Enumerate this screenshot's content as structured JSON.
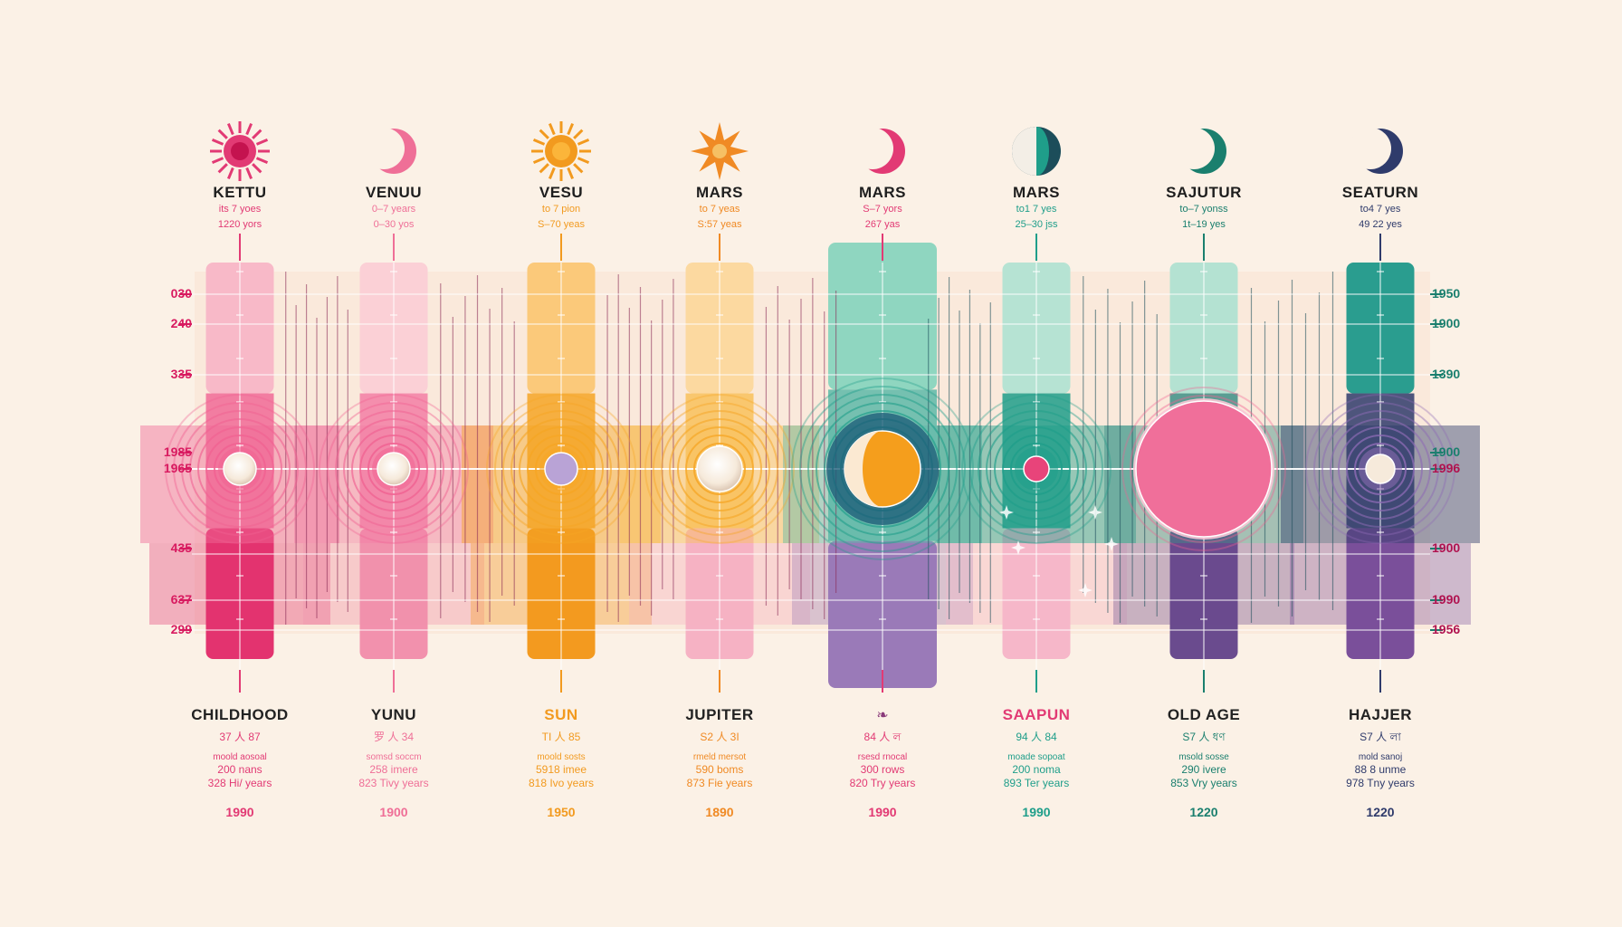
{
  "colors": {
    "background": "#fbf1e6",
    "pink": "#e8447a",
    "magenta": "#d81b60",
    "orange": "#f5a524",
    "teal": "#1f9e8a",
    "navy": "#2f3b6b",
    "purple": "#7a4f9a"
  },
  "columns": [
    {
      "top_label": "KETTU",
      "top_line1": "its 7 yoes",
      "top_line2": "1220 yors",
      "icon": "sun-burst-icon",
      "color": "#e23a74",
      "bottom_label": "CHILDHOOD",
      "b_line1": "37 人 87",
      "b_line2": "moold aosoal",
      "b_line3": "200 nans",
      "b_line4": "328 Hi/ years",
      "b_year": "1990"
    },
    {
      "top_label": "VENUU",
      "top_line1": "0–7 years",
      "top_line2": "0–30 yos",
      "icon": "crescent-moon-icon",
      "color": "#ef6f97",
      "bottom_label": "YUNU",
      "b_line1": "罗 人 34",
      "b_line2": "somsd soccm",
      "b_line3": "258 imere",
      "b_line4": "823 Tivy years",
      "b_year": "1900"
    },
    {
      "top_label": "VESU",
      "top_line1": "to 7 pion",
      "top_line2": "S–70 yeas",
      "icon": "sun-icon",
      "color": "#f29a1f",
      "bottom_label": "SUN",
      "b_line1": "TI 人 85",
      "b_line2": "moold sosts",
      "b_line3": "5918 imee",
      "b_line4": "818 Ivo years",
      "b_year": "1950"
    },
    {
      "top_label": "MARS",
      "top_line1": "to 7 yeas",
      "top_line2": "S:57 yeas",
      "icon": "star-icon",
      "color": "#f08a24",
      "bottom_label": "JUPITER",
      "b_line1": "S2 人 3I",
      "b_line2": "rmeld mersot",
      "b_line3": "590 boms",
      "b_line4": "873 Fie years",
      "b_year": "1890"
    },
    {
      "top_label": "MARS",
      "top_line1": "S–7 yors",
      "top_line2": "267 yas",
      "icon": "crescent-moon-icon",
      "color": "#e23a74",
      "bottom_label": "",
      "b_line1": "84 人 ল",
      "b_line2": "rsesd rnocal",
      "b_line3": "300 rows",
      "b_line4": "820 Try years",
      "b_year": "1990"
    },
    {
      "top_label": "MARS",
      "top_line1": "to1 7 yes",
      "top_line2": "25–30 jss",
      "icon": "half-moon-icon",
      "color": "#1f9e8a",
      "bottom_label": "SAAPUN",
      "b_line1": "94 人 84",
      "b_line2": "moade sopoat",
      "b_line3": "200 noma",
      "b_line4": "893 Ter years",
      "b_year": "1990"
    },
    {
      "top_label": "SAJUTUR",
      "top_line1": "to–7 yonss",
      "top_line2": "1t–19 yes",
      "icon": "crescent-moon-icon",
      "color": "#1a7f6e",
      "bottom_label": "OLD AGE",
      "b_line1": "S7 人 ধণ",
      "b_line2": "msold sosse",
      "b_line3": "290 ivere",
      "b_line4": "853 Vry years",
      "b_year": "1220"
    },
    {
      "top_label": "SEATURN",
      "top_line1": "to4 7 yes",
      "top_line2": "49 22 yes",
      "icon": "crescent-moon-icon",
      "color": "#2f3b6b",
      "bottom_label": "HAJJER",
      "b_line1": "S7 人 লা",
      "b_line2": "mold sanoj",
      "b_line3": "88 8 unme",
      "b_line4": "978 Tny years",
      "b_year": "1220"
    }
  ],
  "left_axis": [
    "030",
    "240",
    "335",
    "1985",
    "1965",
    "435",
    "637",
    "299"
  ],
  "right_axis": [
    "1950",
    "1900",
    "1390",
    "1900",
    "1996",
    "1900",
    "1990",
    "1956"
  ]
}
